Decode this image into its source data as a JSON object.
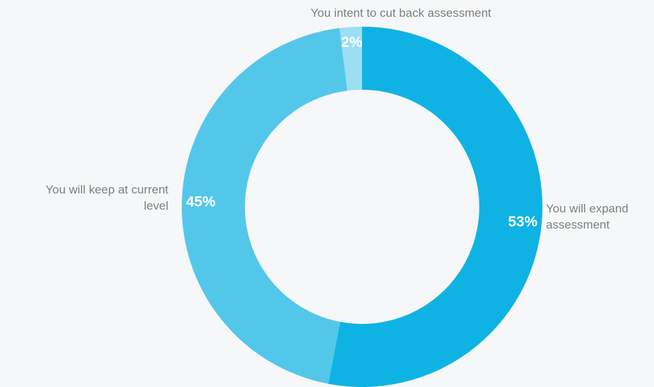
{
  "chart_data": {
    "type": "pie",
    "donut": true,
    "categories": [
      "You will expand\nassessment",
      "You will keep at current\nlevel",
      "You intent to cut back assessment"
    ],
    "values": [
      53,
      45,
      2
    ],
    "value_labels": [
      "53%",
      "45%",
      "2%"
    ],
    "colors": [
      "#0fb3e3",
      "#53c7ea",
      "#9bdff3"
    ],
    "start": "top",
    "direction": "clockwise",
    "legend": "none"
  }
}
